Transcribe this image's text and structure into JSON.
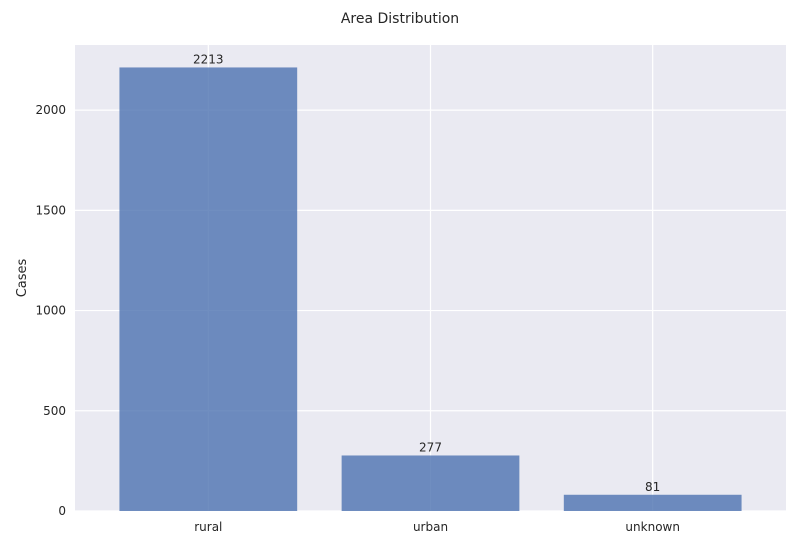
{
  "chart_data": {
    "type": "bar",
    "title": "Area Distribution",
    "xlabel": "",
    "ylabel": "Cases",
    "categories": [
      "rural",
      "urban",
      "unknown"
    ],
    "values": [
      2213,
      277,
      81
    ],
    "data_labels": [
      "2213",
      "277",
      "81"
    ],
    "ylim": [
      0,
      2325
    ],
    "yticks": [
      0,
      500,
      1000,
      1500,
      2000
    ],
    "ytick_labels": [
      "0",
      "500",
      "1000",
      "1500",
      "2000"
    ],
    "grid": true,
    "bar_color": "#4c72b0",
    "bar_opacity": 0.8,
    "plot_background": "#eaeaf2",
    "grid_color": "#ffffff"
  }
}
